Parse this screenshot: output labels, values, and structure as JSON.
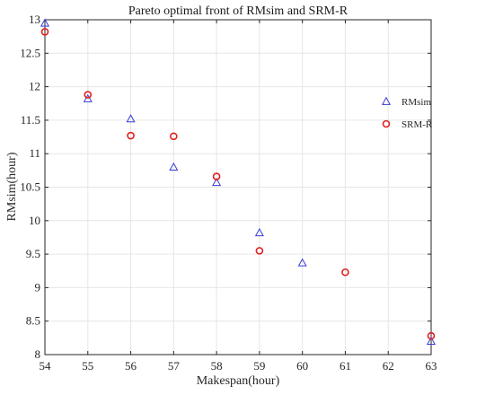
{
  "chart_data": {
    "type": "scatter",
    "title": "Pareto optimal front of RMsim and SRM-R",
    "xlabel": "Makespan(hour)",
    "ylabel": "RMsim(hour)",
    "xlim": [
      54,
      63
    ],
    "ylim": [
      8,
      13
    ],
    "xticks": [
      54,
      55,
      56,
      57,
      58,
      59,
      60,
      61,
      62,
      63
    ],
    "yticks": [
      8,
      8.5,
      9,
      9.5,
      10,
      10.5,
      11,
      11.5,
      12,
      12.5,
      13
    ],
    "grid": true,
    "legend_position": "right",
    "series": [
      {
        "name": "RMsim",
        "marker": "triangle",
        "color": "#3b3bd6",
        "points": [
          [
            54,
            12.95
          ],
          [
            55,
            11.82
          ],
          [
            56,
            11.52
          ],
          [
            57,
            10.8
          ],
          [
            58,
            10.57
          ],
          [
            59,
            9.82
          ],
          [
            60,
            9.37
          ],
          [
            63,
            8.2
          ]
        ]
      },
      {
        "name": "SRM-R",
        "marker": "circle",
        "color": "#e02020",
        "points": [
          [
            54,
            12.82
          ],
          [
            55,
            11.88
          ],
          [
            56,
            11.27
          ],
          [
            57,
            11.26
          ],
          [
            58,
            10.66
          ],
          [
            59,
            9.55
          ],
          [
            61,
            9.23
          ],
          [
            63,
            8.28
          ]
        ]
      }
    ]
  }
}
